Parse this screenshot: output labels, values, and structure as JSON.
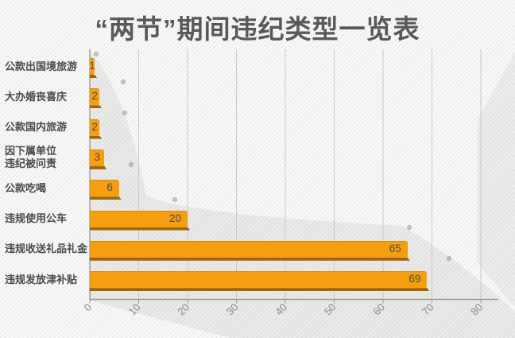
{
  "title": "“两节”期间违纪类型一览表",
  "chart_data": {
    "type": "bar",
    "orientation": "horizontal",
    "title": "“两节”期间违纪类型一览表",
    "categories": [
      "公款出国境旅游",
      "大办婚丧喜庆",
      "公款国内旅游",
      "因下属单位\n违纪被问责",
      "公款吃喝",
      "违规使用公车",
      "违规收送礼品礼金",
      "违规发放津补贴"
    ],
    "values": [
      1,
      2,
      2,
      3,
      6,
      20,
      65,
      69
    ],
    "xlabel": "",
    "ylabel": "",
    "xlim": [
      0,
      80
    ],
    "x_ticks": [
      0,
      10,
      20,
      30,
      40,
      50,
      60,
      70,
      80
    ],
    "grid": true,
    "legend": "none",
    "value_label_position": "inside-end",
    "colors": {
      "bar": "#F49E10",
      "bar_shadow": "#A1660A",
      "value_text": "#4d4d4d",
      "category_text": "#4b4b4b",
      "grid_line": "#c9c9c9",
      "axis_line": "#9c9c9c",
      "tick_text": "#8a8a8a",
      "title_text": "#595959",
      "background": "#f8f8f7"
    }
  }
}
